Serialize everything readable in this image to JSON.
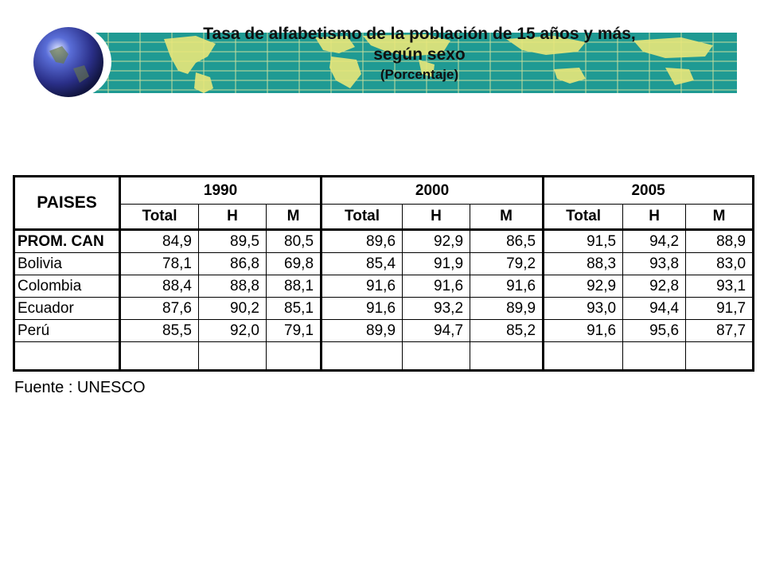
{
  "title": "Tasa de alfabetismo de la población de 15 años y más,",
  "title_line2": "según sexo",
  "subtitle": "(Porcentaje)",
  "colors": {
    "banner": "#1f9a93",
    "land": "#e8e77a",
    "grid": "#f3efa0"
  },
  "icons": {
    "globe": "globe-icon"
  },
  "table": {
    "corner_header": "PAISES",
    "years": [
      "1990",
      "2000",
      "2005"
    ],
    "sub_headers": [
      "Total",
      "H",
      "M",
      "Total",
      "H",
      "M",
      "Total",
      "H",
      "M"
    ],
    "rows": [
      {
        "country": "PROM. CAN",
        "values": [
          "84,9",
          "89,5",
          "80,5",
          "89,6",
          "92,9",
          "86,5",
          "91,5",
          "94,2",
          "88,9"
        ]
      },
      {
        "country": "Bolivia",
        "values": [
          "78,1",
          "86,8",
          "69,8",
          "85,4",
          "91,9",
          "79,2",
          "88,3",
          "93,8",
          "83,0"
        ]
      },
      {
        "country": "Colombia",
        "values": [
          "88,4",
          "88,8",
          "88,1",
          "91,6",
          "91,6",
          "91,6",
          "92,9",
          "92,8",
          "93,1"
        ]
      },
      {
        "country": "Ecuador",
        "values": [
          "87,6",
          "90,2",
          "85,1",
          "91,6",
          "93,2",
          "89,9",
          "93,0",
          "94,4",
          "91,7"
        ]
      },
      {
        "country": "Perú",
        "values": [
          "85,5",
          "92,0",
          "79,1",
          "89,9",
          "94,7",
          "85,2",
          "91,6",
          "95,6",
          "87,7"
        ]
      }
    ]
  },
  "source": "Fuente : UNESCO"
}
